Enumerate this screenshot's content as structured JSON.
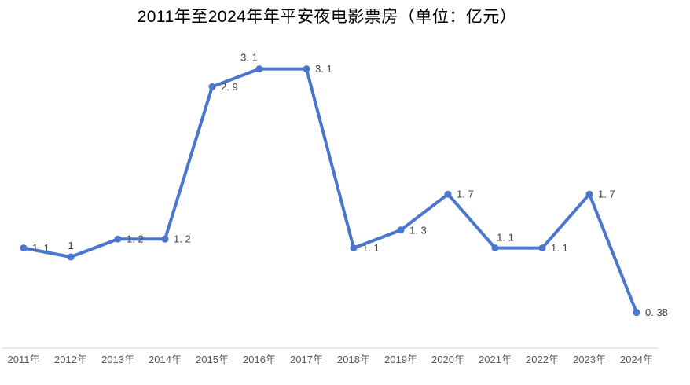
{
  "chart_data": {
    "type": "line",
    "title": "2011年至2024年年平安夜电影票房（单位：亿元）",
    "categories": [
      "2011年",
      "2012年",
      "2013年",
      "2014年",
      "2015年",
      "2016年",
      "2017年",
      "2018年",
      "2019年",
      "2020年",
      "2021年",
      "2022年",
      "2023年",
      "2024年"
    ],
    "values": [
      1.1,
      1,
      1.2,
      1.2,
      2.9,
      3.1,
      3.1,
      1.1,
      1.3,
      1.7,
      1.1,
      1.1,
      1.7,
      0.38
    ],
    "point_labels": [
      "1. 1",
      "1",
      "1. 2",
      "1. 2",
      "2. 9",
      "3. 1",
      "3. 1",
      "1. 1",
      "1. 3",
      "1. 7",
      "1. 1",
      "1. 1",
      "1. 7",
      "0. 38"
    ],
    "label_positions": [
      "right",
      "above",
      "right",
      "right",
      "right",
      "above-left",
      "right",
      "right",
      "right",
      "right",
      "above-right",
      "right",
      "right",
      "right"
    ],
    "xlabel": "",
    "ylabel": "",
    "ylim": [
      0,
      3.5
    ],
    "grid": false,
    "legend_visible": false,
    "y_axis_visible": false,
    "x_axis_line_visible": true,
    "line_color": "#4a76cd",
    "marker_color": "#4a76cd",
    "point_label_color": "#404040",
    "tick_label_color": "#595959",
    "axis_line_color": "#d6d6d6",
    "background": "#ffffff"
  }
}
